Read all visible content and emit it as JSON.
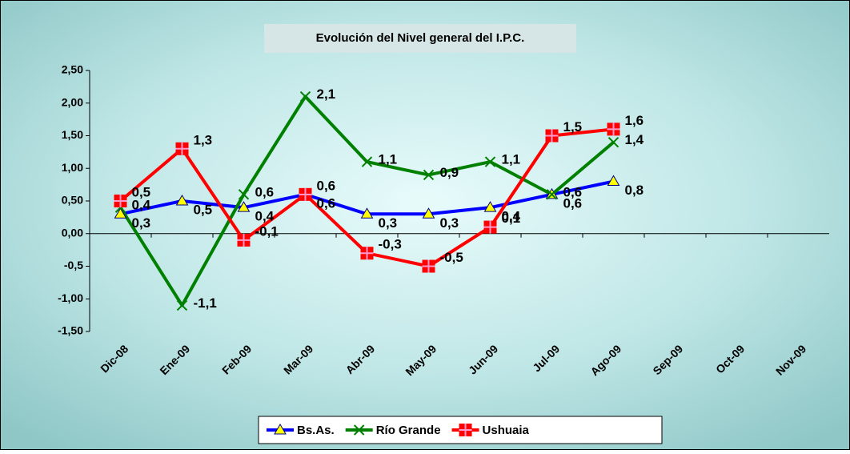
{
  "chart_data": {
    "type": "line",
    "title": "Evolución del Nivel general del I.P.C.",
    "categories": [
      "Dic-08",
      "Ene-09",
      "Feb-09",
      "Mar-09",
      "Abr-09",
      "May-09",
      "Jun-09",
      "Jul-09",
      "Ago-09",
      "Sep-09",
      "Oct-09",
      "Nov-09"
    ],
    "series": [
      {
        "name": "Bs.As.",
        "color": "#0000ff",
        "marker": "triangle",
        "marker_color": "#ffff00",
        "values": [
          0.3,
          0.5,
          0.4,
          0.6,
          0.3,
          0.3,
          0.4,
          0.6,
          0.8,
          null,
          null,
          null
        ],
        "value_labels": [
          "0,3",
          "0,5",
          "0,4",
          "0,6",
          "0,3",
          "0,3",
          "0,4",
          "0,6",
          "0,8",
          null,
          null,
          null
        ]
      },
      {
        "name": "Río Grande",
        "color": "#008000",
        "marker": "x",
        "marker_color": "#008000",
        "values": [
          0.4,
          -1.1,
          0.6,
          2.1,
          1.1,
          0.9,
          1.1,
          0.6,
          1.4,
          null,
          null,
          null
        ],
        "value_labels": [
          "0,4",
          "-1,1",
          "0,6",
          "2,1",
          "1,1",
          "0,9",
          "1,1",
          "0,6",
          "1,4",
          null,
          null,
          null
        ]
      },
      {
        "name": "Ushuaia",
        "color": "#ff0000",
        "marker": "square",
        "marker_color": "#ff0000",
        "values": [
          0.5,
          1.3,
          -0.1,
          0.6,
          -0.3,
          -0.5,
          0.1,
          1.5,
          1.6,
          null,
          null,
          null
        ],
        "value_labels": [
          "0,5",
          "1,3",
          "-0,1",
          "0,6",
          "-0,3",
          "-0,5",
          "0,1",
          "1,5",
          "1,6",
          null,
          null,
          null
        ]
      }
    ],
    "ylim": [
      -1.5,
      2.5
    ],
    "yticks": [
      {
        "value": -1.5,
        "label": "-1,50"
      },
      {
        "value": -1,
        "label": "-1,00"
      },
      {
        "value": -0.5,
        "label": "-0,5"
      },
      {
        "value": 0,
        "label": "0,00"
      },
      {
        "value": 0.5,
        "label": "0,50"
      },
      {
        "value": 1,
        "label": "1,00"
      },
      {
        "value": 1.5,
        "label": "1,50"
      },
      {
        "value": 2,
        "label": "2,00"
      },
      {
        "value": 2.5,
        "label": "2,50"
      }
    ],
    "grid": false,
    "legend": "bottom"
  }
}
